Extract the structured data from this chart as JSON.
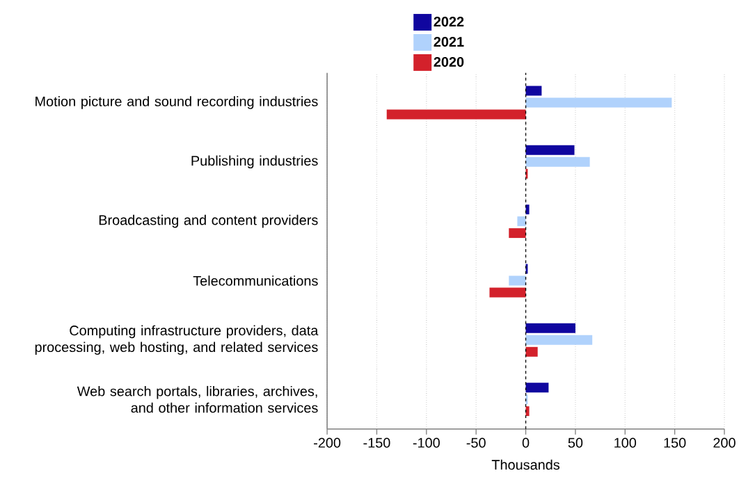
{
  "chart_data": {
    "type": "bar",
    "orientation": "horizontal",
    "categories": [
      "Motion picture and sound recording industries",
      "Publishing industries",
      "Broadcasting and content providers",
      "Telecommunications",
      "Computing infrastructure providers, data processing, web hosting, and related services",
      "Web search portals, libraries, archives, and other information services"
    ],
    "series": [
      {
        "name": "2022",
        "color": "#10069f",
        "values": [
          16,
          49,
          3.5,
          2,
          50,
          23
        ]
      },
      {
        "name": "2021",
        "color": "#b0d2fc",
        "values": [
          147,
          64.5,
          -8.5,
          -17,
          67,
          2
        ]
      },
      {
        "name": "2020",
        "color": "#d3212b",
        "values": [
          -140,
          2,
          -17,
          -36.5,
          12,
          3.5
        ]
      }
    ],
    "xlabel": "Thousands",
    "xlim": [
      -200,
      200
    ],
    "xticks": [
      -200,
      -150,
      -100,
      -50,
      0,
      50,
      100,
      150,
      200
    ],
    "grid": "x",
    "legend": "top",
    "ref_lines": [
      {
        "axis": "x",
        "value": 0,
        "color": "#000000",
        "line_style": "dashed"
      }
    ]
  }
}
